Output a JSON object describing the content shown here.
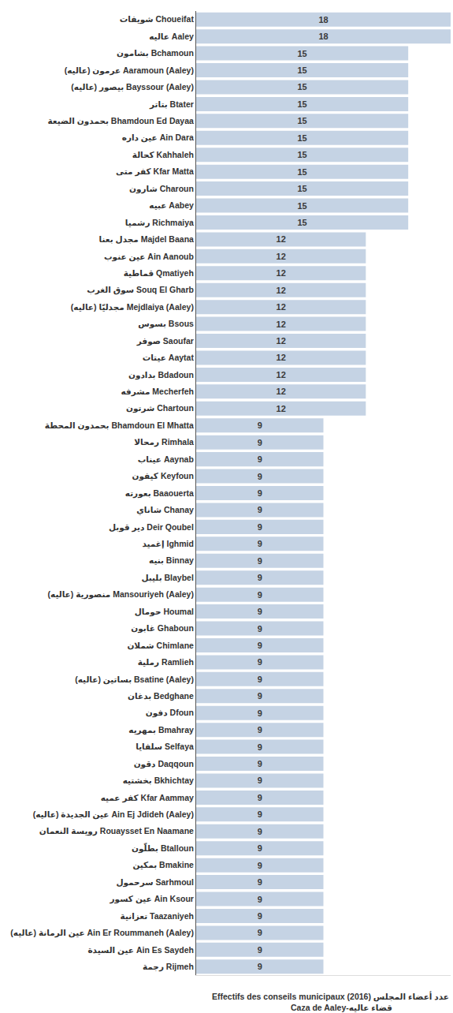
{
  "chart_data": {
    "type": "bar",
    "orientation": "horizontal",
    "title": "Effectifs des conseils municipaux (2016) عدد أعضاء المجلس",
    "subtitle": "Caza de Aaley-قضاء عاليه",
    "categories": [
      "شويفات Choueifat",
      "عاليه Aaley",
      "بشامون Bchamoun",
      "عرمون (عاليه) Aaramoun (Aaley)",
      "بيصور (عاليه) Bayssour (Aaley)",
      "بتاتر Btater",
      "بحمدون الضيعة Bhamdoun Ed Dayaa",
      "عين داره Ain Dara",
      "كحالة Kahhaleh",
      "كفر متى Kfar Matta",
      "شارون Charoun",
      "عبيه Aabey",
      "رشميا Richmaiya",
      "مجدل بعنا Majdel Baana",
      "عين عنوب Ain Aanoub",
      "قماطية Qmatiyeh",
      "سوق الغرب Souq El Gharb",
      "مجدليّا (عاليه) Mejdlaiya (Aaley)",
      "بسوس Bsous",
      "صوفر Saoufar",
      "عيتات Aaytat",
      "بدادون Bdadoun",
      "مشرفه Mecherfeh",
      "شرتون Chartoun",
      "بحمدون المحطة Bhamdoun El Mhatta",
      "رمحالا Rimhala",
      "عيناب Aaynab",
      "كيفون Keyfoun",
      "بعورته Baaouerta",
      "شاناي Chanay",
      "دير قوبل Deir Qoubel",
      "إغميد Ighmid",
      "بنيه Binnay",
      "بليبل Blaybel",
      "منصورية (عاليه) Mansouriyeh (Aaley)",
      "حومال Houmal",
      "غابون Ghaboun",
      "شملان Chimlane",
      "رملية Ramlieh",
      "بساتين (عاليه) Bsatine (Aaley)",
      "بدغان Bedghane",
      "دفون Dfoun",
      "بمهريه Bmahray",
      "سلفايا Selfaya",
      "دقون Daqqoun",
      "بخشتيه Bkhichtay",
      "كفر عميه Kfar Aammay",
      "عين الجديدة (عاليه) Ain Ej Jdideh (Aaley)",
      "رويسة النعمان Rouaysset En Naamane",
      "بطلّون Btalloun",
      "بمكين Bmakine",
      "سرحمول Sarhmoul",
      "عين كسور Ain Ksour",
      "تعزانية Taazaniyeh",
      "عين الرمانة (عاليه) Ain Er Roummaneh (Aaley)",
      "عين السيدة Ain Es Saydeh",
      "رجمة Rijmeh"
    ],
    "values": [
      18,
      18,
      15,
      15,
      15,
      15,
      15,
      15,
      15,
      15,
      15,
      15,
      15,
      12,
      12,
      12,
      12,
      12,
      12,
      12,
      12,
      12,
      12,
      12,
      9,
      9,
      9,
      9,
      9,
      9,
      9,
      9,
      9,
      9,
      9,
      9,
      9,
      9,
      9,
      9,
      9,
      9,
      9,
      9,
      9,
      9,
      9,
      9,
      9,
      9,
      9,
      9,
      9,
      9,
      9,
      9,
      9
    ],
    "color": "#c5d3e4",
    "xlim": [
      0,
      18
    ],
    "xticks": [],
    "grid": false,
    "data_labels": true,
    "tick_labels": "y"
  }
}
